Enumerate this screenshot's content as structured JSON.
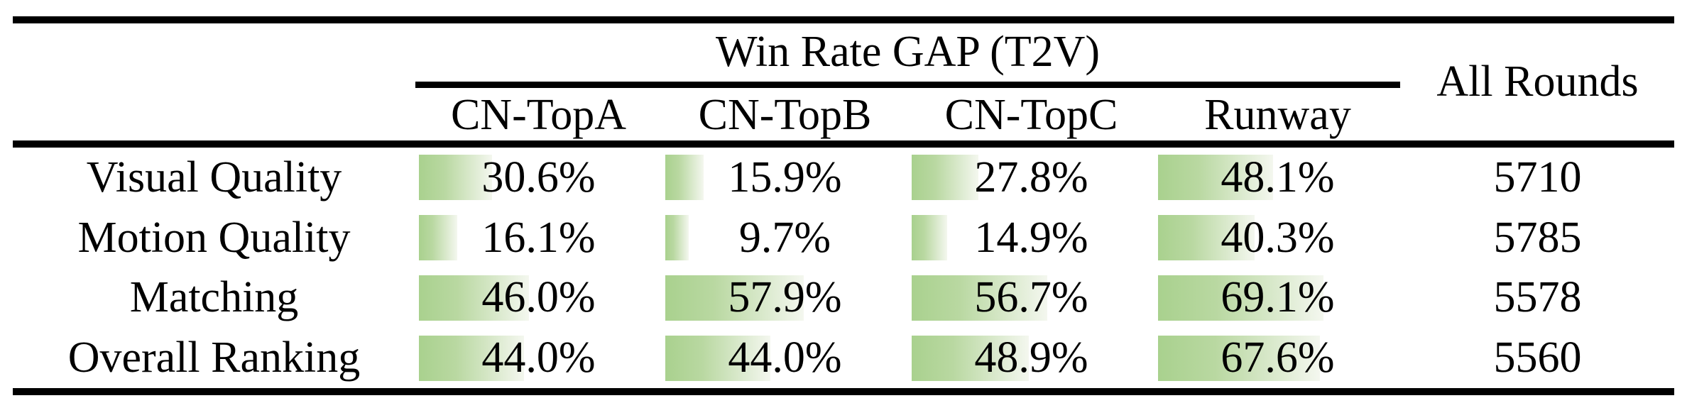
{
  "table": {
    "group_header": "Win Rate GAP (T2V)",
    "all_rounds_header": "All Rounds",
    "columns": [
      "CN-TopA",
      "CN-TopB",
      "CN-TopC",
      "Runway"
    ],
    "rows": [
      {
        "label": "Visual Quality",
        "gaps": [
          "30.6%",
          "15.9%",
          "27.8%",
          "48.1%"
        ],
        "gap_pct": [
          30.6,
          15.9,
          27.8,
          48.1
        ],
        "all_rounds": "5710"
      },
      {
        "label": "Motion Quality",
        "gaps": [
          "16.1%",
          "9.7%",
          "14.9%",
          "40.3%"
        ],
        "gap_pct": [
          16.1,
          9.7,
          14.9,
          40.3
        ],
        "all_rounds": "5785"
      },
      {
        "label": "Matching",
        "gaps": [
          "46.0%",
          "57.9%",
          "56.7%",
          "69.1%"
        ],
        "gap_pct": [
          46.0,
          57.9,
          56.7,
          69.1
        ],
        "all_rounds": "5578"
      },
      {
        "label": "Overall Ranking",
        "gaps": [
          "44.0%",
          "44.0%",
          "48.9%",
          "67.6%"
        ],
        "gap_pct": [
          44.0,
          44.0,
          48.9,
          67.6
        ],
        "all_rounds": "5560"
      }
    ]
  },
  "chart_data": {
    "type": "table",
    "title": "Win Rate GAP (T2V)",
    "columns": [
      "CN-TopA",
      "CN-TopB",
      "CN-TopC",
      "Runway",
      "All Rounds"
    ],
    "rows": [
      {
        "label": "Visual Quality",
        "win_rate_gap_t2v_percent": [
          30.6,
          15.9,
          27.8,
          48.1
        ],
        "all_rounds": 5710
      },
      {
        "label": "Motion Quality",
        "win_rate_gap_t2v_percent": [
          16.1,
          9.7,
          14.9,
          40.3
        ],
        "all_rounds": 5785
      },
      {
        "label": "Matching",
        "win_rate_gap_t2v_percent": [
          46.0,
          57.9,
          56.7,
          69.1
        ],
        "all_rounds": 5578
      },
      {
        "label": "Overall Ranking",
        "win_rate_gap_t2v_percent": [
          44.0,
          44.0,
          48.9,
          67.6
        ],
        "all_rounds": 5560
      }
    ],
    "bar_scale": "in-cell green gradient bar, width = percent of full column width (100% = 337px)"
  },
  "colors": {
    "background": "#ffffff",
    "text": "#000000",
    "rule": "#000000",
    "bar_gradient_start": "#a9d18e",
    "bar_gradient_mid": "#b9d8a1",
    "bar_gradient_end": "#f4f7ef"
  }
}
